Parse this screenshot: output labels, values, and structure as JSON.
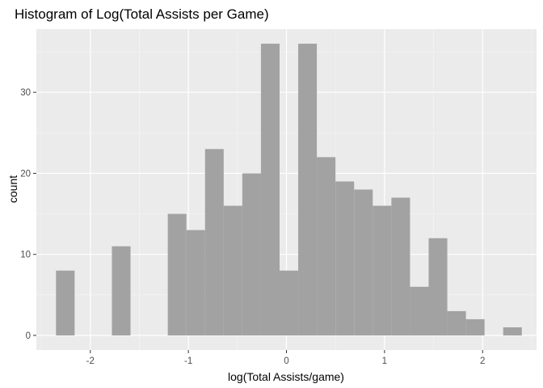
{
  "chart_data": {
    "type": "bar",
    "title": "Histogram of Log(Total Assists per Game)",
    "xlabel": "log(Total Assists/game)",
    "ylabel": "count",
    "xlim": [
      -2.55,
      2.55
    ],
    "ylim": [
      -1.8,
      37.8
    ],
    "x_ticks": [
      -2,
      -1,
      0,
      1,
      2
    ],
    "x_tick_labels": [
      "-2",
      "-1",
      "0",
      "1",
      "2"
    ],
    "y_ticks": [
      0,
      10,
      20,
      30
    ],
    "y_tick_labels": [
      "0",
      "10",
      "20",
      "30"
    ],
    "bin_width": 0.19,
    "bins": [
      {
        "start": -2.35,
        "count": 8
      },
      {
        "start": -2.16,
        "count": 0
      },
      {
        "start": -1.97,
        "count": 0
      },
      {
        "start": -1.78,
        "count": 11
      },
      {
        "start": -1.59,
        "count": 0
      },
      {
        "start": -1.4,
        "count": 0
      },
      {
        "start": -1.21,
        "count": 15
      },
      {
        "start": -1.02,
        "count": 13
      },
      {
        "start": -0.83,
        "count": 23
      },
      {
        "start": -0.64,
        "count": 16
      },
      {
        "start": -0.45,
        "count": 20
      },
      {
        "start": -0.26,
        "count": 36
      },
      {
        "start": -0.07,
        "count": 8
      },
      {
        "start": 0.12,
        "count": 36
      },
      {
        "start": 0.31,
        "count": 22
      },
      {
        "start": 0.5,
        "count": 19
      },
      {
        "start": 0.69,
        "count": 18
      },
      {
        "start": 0.88,
        "count": 16
      },
      {
        "start": 1.07,
        "count": 17
      },
      {
        "start": 1.26,
        "count": 6
      },
      {
        "start": 1.45,
        "count": 12
      },
      {
        "start": 1.64,
        "count": 3
      },
      {
        "start": 1.83,
        "count": 2
      },
      {
        "start": 2.02,
        "count": 0
      },
      {
        "start": 2.21,
        "count": 1
      }
    ],
    "grid": true,
    "legend": "none",
    "colors": {
      "panel_background": "#ebebeb",
      "grid_major": "#ffffff",
      "grid_minor": "#f5f5f5",
      "bar_fill": "#a2a2a2",
      "tick_color": "#333333"
    }
  }
}
